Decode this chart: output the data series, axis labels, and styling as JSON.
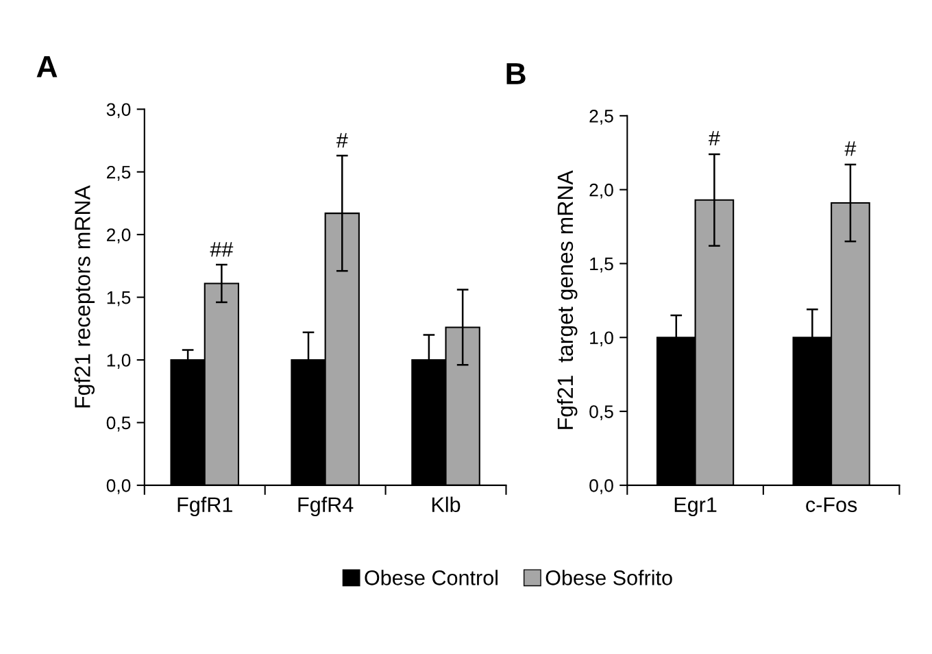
{
  "chart_data": [
    {
      "type": "bar",
      "title": "A",
      "ylabel": "Fgf21 receptors mRNA",
      "categories": [
        "FgfR1",
        "FgfR4",
        "Klb"
      ],
      "series": [
        {
          "name": "Obese Control",
          "color": "#000000",
          "values": [
            1.0,
            1.0,
            1.0
          ],
          "errors": [
            0.08,
            0.22,
            0.2
          ]
        },
        {
          "name": "Obese Sofrito",
          "color": "#a6a6a6",
          "values": [
            1.61,
            2.17,
            1.26
          ],
          "errors": [
            0.15,
            0.46,
            0.3
          ]
        }
      ],
      "ylim": [
        0,
        3.0
      ],
      "yticks": [
        {
          "value": 0,
          "label": "0,0"
        },
        {
          "value": 0.5,
          "label": "0,5"
        },
        {
          "value": 1.0,
          "label": "1,0"
        },
        {
          "value": 1.5,
          "label": "1,5"
        },
        {
          "value": 2.0,
          "label": "2,0"
        },
        {
          "value": 2.5,
          "label": "2,5"
        },
        {
          "value": 3.0,
          "label": "3,0"
        }
      ],
      "annotations": [
        "##",
        "#"
      ],
      "legend": "bottom"
    },
    {
      "type": "bar",
      "title": "B",
      "ylabel": "Fgf21  target genes mRNA",
      "categories": [
        "Egr1",
        "c-Fos"
      ],
      "series": [
        {
          "name": "Obese Control",
          "color": "#000000",
          "values": [
            1.0,
            1.0
          ],
          "errors": [
            0.15,
            0.19
          ]
        },
        {
          "name": "Obese Sofrito",
          "color": "#a6a6a6",
          "values": [
            1.93,
            1.91
          ],
          "errors": [
            0.31,
            0.26
          ]
        }
      ],
      "ylim": [
        0,
        2.5
      ],
      "yticks": [
        {
          "value": 0,
          "label": "0,0"
        },
        {
          "value": 0.5,
          "label": "0,5"
        },
        {
          "value": 1.0,
          "label": "1,0"
        },
        {
          "value": 1.5,
          "label": "1,5"
        },
        {
          "value": 2.0,
          "label": "2,0"
        },
        {
          "value": 2.5,
          "label": "2,5"
        }
      ],
      "annotations": [
        "#",
        "#"
      ]
    }
  ]
}
